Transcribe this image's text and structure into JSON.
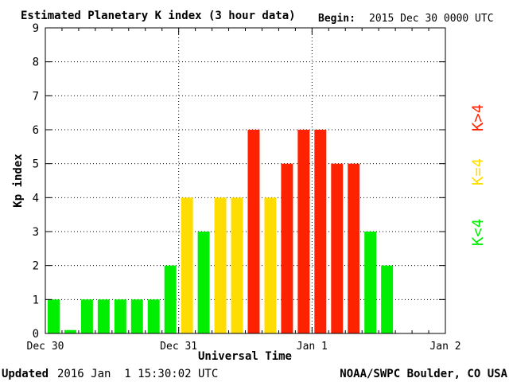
{
  "header": {
    "title": "Estimated Planetary K index (3 hour data)",
    "begin_label": "Begin:",
    "begin_value": "2015 Dec 30 0000 UTC"
  },
  "footer": {
    "updated_label": "Updated",
    "updated_value": "2016 Jan  1 15:30:02 UTC",
    "credit": "NOAA/SWPC Boulder, CO USA"
  },
  "legend": {
    "low": "K<4",
    "mid": "K=4",
    "high": "K>4"
  },
  "colors": {
    "low": "#00ee00",
    "mid": "#ffdd00",
    "high": "#ff2200",
    "grid": "#000000",
    "text": "#000000"
  },
  "chart_data": {
    "type": "bar",
    "title": "Estimated Planetary K index (3 hour data)",
    "xlabel": "Universal Time",
    "ylabel": "Kp index",
    "ylim": [
      0,
      9
    ],
    "yticks": [
      "0",
      "1",
      "2",
      "3",
      "4",
      "5",
      "6",
      "7",
      "8",
      "9"
    ],
    "xticks": [
      "Dec 30",
      "Dec 31",
      "Jan 1",
      "Jan 2"
    ],
    "grid": true,
    "bars_per_day": 8,
    "days": 3,
    "values": [
      1,
      0.1,
      1,
      1,
      1,
      1,
      1,
      2,
      4,
      3,
      4,
      4,
      6,
      4,
      5,
      6,
      6,
      5,
      5,
      3,
      2
    ]
  }
}
